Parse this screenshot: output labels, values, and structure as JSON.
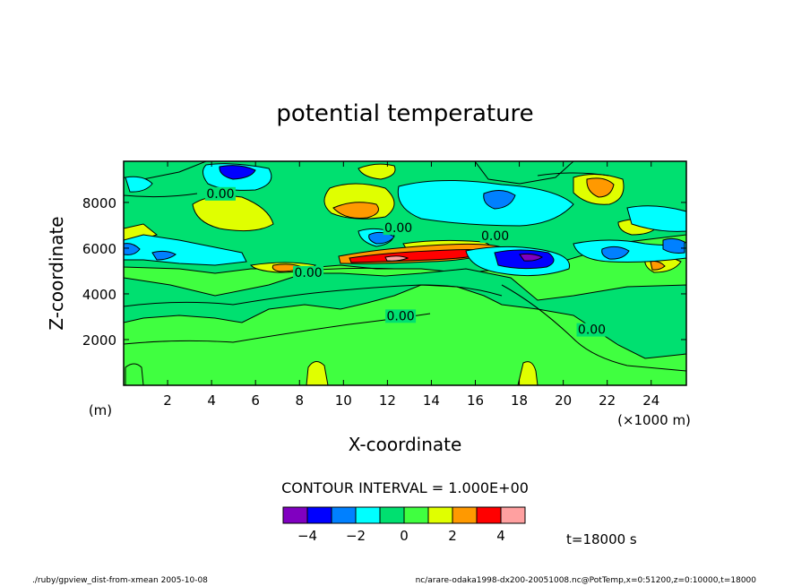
{
  "chart_data": {
    "type": "contour",
    "title": "potential temperature",
    "xlabel": "X-coordinate",
    "ylabel": "Z-coordinate",
    "x_unit": "(×1000 m)",
    "y_unit": "(m)",
    "xlim": [
      0,
      25.6
    ],
    "ylim": [
      0,
      9800
    ],
    "x_ticks": [
      2,
      4,
      6,
      8,
      10,
      12,
      14,
      16,
      18,
      20,
      22,
      24
    ],
    "y_ticks": [
      2000,
      4000,
      6000,
      8000
    ],
    "contour_interval_label": "CONTOUR INTERVAL = 1.000E+00",
    "contour_labels": [
      {
        "text": "0.00",
        "x": 4.4,
        "z": 8200
      },
      {
        "text": "0.00",
        "x": 12.5,
        "z": 6700
      },
      {
        "text": "0.00",
        "x": 16.9,
        "z": 6350
      },
      {
        "text": "0.00",
        "x": 8.4,
        "z": 4750
      },
      {
        "text": "0.00",
        "x": 12.6,
        "z": 2850
      },
      {
        "text": "0.00",
        "x": 21.3,
        "z": 2250
      }
    ],
    "features": [
      {
        "kind": "warm",
        "value": 5,
        "x": 12.0,
        "z": 5500
      },
      {
        "kind": "cold",
        "value": -5,
        "x": 18.8,
        "z": 5550
      },
      {
        "kind": "warm",
        "value": 3,
        "x": 10.4,
        "z": 7600
      },
      {
        "kind": "warm",
        "value": 3,
        "x": 21.7,
        "z": 8700
      },
      {
        "kind": "cold",
        "value": -3,
        "x": 4.9,
        "z": 9200
      },
      {
        "kind": "cold",
        "value": -3,
        "x": 16.7,
        "z": 7050
      }
    ],
    "colorbar": {
      "colors": [
        "#8000c0",
        "#0000ff",
        "#0080ff",
        "#00ffff",
        "#00e070",
        "#40ff40",
        "#e0ff00",
        "#ff9900",
        "#ff0000",
        "#ffa0a0"
      ],
      "tick_labels": [
        "−4",
        "−2",
        "0",
        "2",
        "4"
      ],
      "tick_values": [
        -4,
        -2,
        0,
        2,
        4
      ]
    }
  },
  "time_label": "t=18000 s",
  "footer_left": "./ruby/gpview_dist-from-xmean  2005-10-08",
  "footer_right": "nc/arare-odaka1998-dx200-20051008.nc@PotTemp,x=0:51200,z=0:10000,t=18000"
}
